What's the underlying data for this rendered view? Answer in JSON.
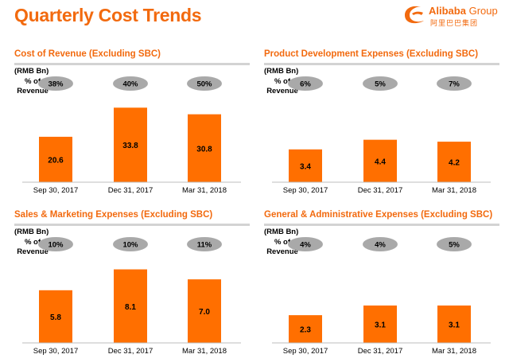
{
  "slide": {
    "title": "Quarterly Cost Trends",
    "logo": {
      "name_bold": "Alibaba",
      "name_rest": " Group",
      "name_cn": "阿里巴巴集团"
    }
  },
  "colors": {
    "accent": "#f26a0f",
    "bar": "#ff6f00",
    "pill": "#a9a9a9",
    "rule": "#d3d3d3"
  },
  "chart_data": [
    {
      "type": "bar",
      "title": "Cost of Revenue (Excluding SBC)",
      "unit_label": "(RMB Bn)",
      "pct_label": [
        "% of",
        "Revenue"
      ],
      "categories": [
        "Sep 30, 2017",
        "Dec 31, 2017",
        "Mar 31, 2018"
      ],
      "values": [
        20.6,
        33.8,
        30.8
      ],
      "value_labels": [
        "20.6",
        "33.8",
        "30.8"
      ],
      "pct_of_revenue": [
        "38%",
        "40%",
        "50%"
      ],
      "ylim": [
        0,
        35
      ]
    },
    {
      "type": "bar",
      "title": "Product Development Expenses (Excluding SBC)",
      "unit_label": "(RMB Bn)",
      "pct_label": [
        "% of",
        "Revenue"
      ],
      "categories": [
        "Sep 30, 2017",
        "Dec 31, 2017",
        "Mar 31, 2018"
      ],
      "values": [
        3.4,
        4.4,
        4.2
      ],
      "value_labels": [
        "3.4",
        "4.4",
        "4.2"
      ],
      "pct_of_revenue": [
        "6%",
        "5%",
        "7%"
      ],
      "ylim": [
        0,
        8
      ]
    },
    {
      "type": "bar",
      "title": "Sales & Marketing Expenses (Excluding SBC)",
      "unit_label": "(RMB Bn)",
      "pct_label": [
        "% of",
        "Revenue"
      ],
      "categories": [
        "Sep 30, 2017",
        "Dec 31, 2017",
        "Mar 31, 2018"
      ],
      "values": [
        5.8,
        8.1,
        7.0
      ],
      "value_labels": [
        "5.8",
        "8.1",
        "7.0"
      ],
      "pct_of_revenue": [
        "10%",
        "10%",
        "11%"
      ],
      "ylim": [
        0,
        8.5
      ]
    },
    {
      "type": "bar",
      "title": "General & Administrative Expenses (Excluding SBC)",
      "unit_label": "(RMB Bn)",
      "pct_label": [
        "% of",
        "Revenue"
      ],
      "categories": [
        "Sep 30, 2017",
        "Dec 31, 2017",
        "Mar 31, 2018"
      ],
      "values": [
        2.3,
        3.1,
        3.1
      ],
      "value_labels": [
        "2.3",
        "3.1",
        "3.1"
      ],
      "pct_of_revenue": [
        "4%",
        "4%",
        "5%"
      ],
      "ylim": [
        0,
        6.4
      ]
    }
  ]
}
